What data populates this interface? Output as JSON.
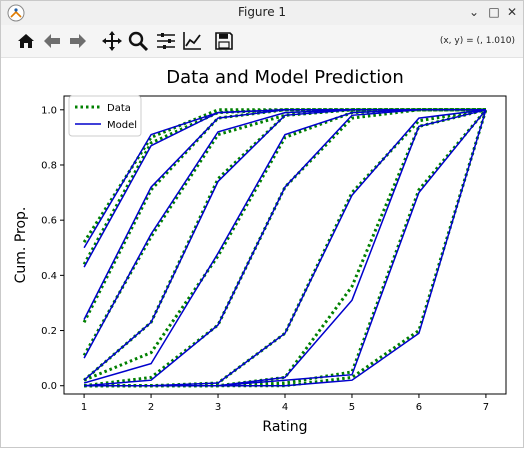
{
  "window": {
    "title": "Figure 1",
    "controls": {
      "minimize": "⌄",
      "maximize": "□",
      "close": "✕"
    }
  },
  "toolbar": {
    "tools": [
      "home-icon",
      "back-arrow-icon",
      "forward-arrow-icon",
      "pan-icon",
      "zoom-icon",
      "configure-subplots-icon",
      "edit-axis-icon",
      "save-icon"
    ],
    "coordinate_readout": "(x, y) = (, 1.010)"
  },
  "chart_data": {
    "type": "line",
    "title": "Data and Model Prediction",
    "xlabel": "Rating",
    "ylabel": "Cum. Prop.",
    "xlim": [
      0.7,
      7.3
    ],
    "ylim": [
      -0.03,
      1.05
    ],
    "xticks": [
      "1",
      "2",
      "3",
      "4",
      "5",
      "6",
      "7"
    ],
    "yticks": [
      "0.0",
      "0.2",
      "0.4",
      "0.6",
      "0.8",
      "1.0"
    ],
    "x": [
      1,
      2,
      3,
      4,
      5,
      6,
      7
    ],
    "legend": {
      "position": "upper-left",
      "entries": [
        "Data",
        "Model"
      ]
    },
    "colors": {
      "data": "#008000",
      "model": "#0000cc"
    },
    "series": [
      {
        "data": [
          0.52,
          0.9,
          1.0,
          1.0,
          1.0,
          1.0,
          1.0
        ],
        "model": [
          0.5,
          0.91,
          0.99,
          1.0,
          1.0,
          1.0,
          1.0
        ]
      },
      {
        "data": [
          0.44,
          0.88,
          0.99,
          1.0,
          1.0,
          1.0,
          1.0
        ],
        "model": [
          0.43,
          0.87,
          0.99,
          1.0,
          1.0,
          1.0,
          1.0
        ]
      },
      {
        "data": [
          0.23,
          0.71,
          0.97,
          1.0,
          1.0,
          1.0,
          1.0
        ],
        "model": [
          0.24,
          0.72,
          0.97,
          1.0,
          1.0,
          1.0,
          1.0
        ]
      },
      {
        "data": [
          0.11,
          0.54,
          0.91,
          0.98,
          1.0,
          1.0,
          1.0
        ],
        "model": [
          0.1,
          0.55,
          0.92,
          0.99,
          1.0,
          1.0,
          1.0
        ]
      },
      {
        "data": [
          0.02,
          0.23,
          0.75,
          0.98,
          1.0,
          1.0,
          1.0
        ],
        "model": [
          0.02,
          0.23,
          0.74,
          0.98,
          1.0,
          1.0,
          1.0
        ]
      },
      {
        "data": [
          0.02,
          0.12,
          0.47,
          0.9,
          0.99,
          1.0,
          1.0
        ],
        "model": [
          0.01,
          0.08,
          0.48,
          0.91,
          0.99,
          1.0,
          1.0
        ]
      },
      {
        "data": [
          0.0,
          0.03,
          0.22,
          0.72,
          0.97,
          1.0,
          1.0
        ],
        "model": [
          0.0,
          0.02,
          0.22,
          0.72,
          0.98,
          1.0,
          1.0
        ]
      },
      {
        "data": [
          0.0,
          0.0,
          0.01,
          0.19,
          0.7,
          0.96,
          1.0
        ],
        "model": [
          0.0,
          0.0,
          0.01,
          0.19,
          0.69,
          0.97,
          1.0
        ]
      },
      {
        "data": [
          0.0,
          0.0,
          0.0,
          0.03,
          0.36,
          0.94,
          1.0
        ],
        "model": [
          0.0,
          0.0,
          0.0,
          0.03,
          0.31,
          0.94,
          1.0
        ]
      },
      {
        "data": [
          0.0,
          0.0,
          0.0,
          0.01,
          0.05,
          0.71,
          1.0
        ],
        "model": [
          0.0,
          0.0,
          0.0,
          0.02,
          0.04,
          0.7,
          1.0
        ]
      },
      {
        "data": [
          0.0,
          0.0,
          0.0,
          0.0,
          0.03,
          0.2,
          1.0
        ],
        "model": [
          0.0,
          0.0,
          0.0,
          0.0,
          0.02,
          0.19,
          1.0
        ]
      }
    ]
  }
}
